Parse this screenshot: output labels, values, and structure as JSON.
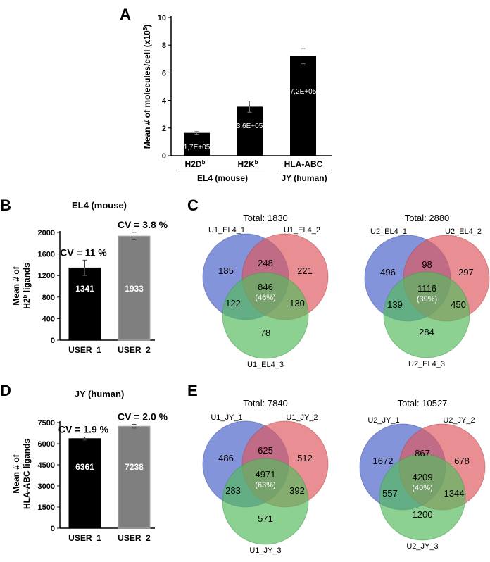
{
  "panels": {
    "A": {
      "letter": "A"
    },
    "B": {
      "letter": "B",
      "title": "EL4 (mouse)"
    },
    "C": {
      "letter": "C"
    },
    "D": {
      "letter": "D",
      "title": "JY (human)"
    },
    "E": {
      "letter": "E"
    }
  },
  "colors": {
    "bar_user1": "#000000",
    "bar_user2": "#7f7f7f",
    "venn_set1": "#4a62c8",
    "venn_set2": "#de5a60",
    "venn_set3": "#55bb5e"
  },
  "chart_data": [
    {
      "id": "A",
      "type": "bar",
      "title": "",
      "ylabel_main": "Mean # of molecules/cell (x10",
      "ylabel_sup": "5",
      "ylabel_end": ")",
      "ylim": [
        0,
        10
      ],
      "yticks": [
        "0",
        "2",
        "4",
        "6",
        "8",
        "10"
      ],
      "categories": [
        {
          "label": "H2D",
          "sup": "b"
        },
        {
          "label": "H2K",
          "sup": "b"
        },
        {
          "label": "HLA-ABC",
          "sup": ""
        }
      ],
      "values": [
        1.65,
        3.55,
        7.2
      ],
      "errors": [
        0.1,
        0.4,
        0.55
      ],
      "data_labels": [
        "1,7E+05",
        "3,6E+05",
        "7,2E+05"
      ],
      "groups": [
        {
          "label": "EL4 (mouse)",
          "categories": [
            0,
            1
          ]
        },
        {
          "label": "JY (human)",
          "categories": [
            2
          ]
        }
      ]
    },
    {
      "id": "B",
      "type": "bar",
      "title": "EL4 (mouse)",
      "ylabel_line1": "Mean # of",
      "ylabel_line2_pre": "H2",
      "ylabel_line2_sup": "b",
      "ylabel_line2_post": " ligands",
      "ylim": [
        0,
        2000
      ],
      "yticks": [
        "0",
        "400",
        "800",
        "1200",
        "1600",
        "2000"
      ],
      "categories": [
        "USER_1",
        "USER_2"
      ],
      "values": [
        1341,
        1933
      ],
      "errors": [
        145,
        70
      ],
      "data_labels": [
        "1341",
        "1933"
      ],
      "annotations": [
        "CV = 11 %",
        "CV = 3.8 %"
      ]
    },
    {
      "id": "D",
      "type": "bar",
      "title": "JY (human)",
      "ylabel_line1": "Mean # of",
      "ylabel_line2": "HLA-ABC ligands",
      "ylim": [
        0,
        7500
      ],
      "yticks": [
        "0",
        "1500",
        "3000",
        "4500",
        "6000",
        "7500"
      ],
      "categories": [
        "USER_1",
        "USER_2"
      ],
      "values": [
        6361,
        7238
      ],
      "errors": [
        110,
        135
      ],
      "data_labels": [
        "6361",
        "7238"
      ],
      "annotations": [
        "CV = 1.9 %",
        "CV = 2.0 %"
      ]
    },
    {
      "id": "C1",
      "type": "venn",
      "title": "Total: 1830",
      "sets": [
        "U1_EL4_1",
        "U1_EL4_2",
        "U1_EL4_3"
      ],
      "regions": {
        "only1": "185",
        "only2": "221",
        "only3": "78",
        "r12": "248",
        "r13": "122",
        "r23": "130",
        "r123": "846"
      },
      "center_pct": "(46%)"
    },
    {
      "id": "C2",
      "type": "venn",
      "title": "Total: 2880",
      "sets": [
        "U2_EL4_1",
        "U2_EL4_2",
        "U2_EL4_3"
      ],
      "regions": {
        "only1": "496",
        "only2": "297",
        "only3": "284",
        "r12": "98",
        "r13": "139",
        "r23": "450",
        "r123": "1116"
      },
      "center_pct": "(39%)"
    },
    {
      "id": "E1",
      "type": "venn",
      "title": "Total: 7840",
      "sets": [
        "U1_JY_1",
        "U1_JY_2",
        "U1_JY_3"
      ],
      "regions": {
        "only1": "486",
        "only2": "512",
        "only3": "571",
        "r12": "625",
        "r13": "283",
        "r23": "392",
        "r123": "4971"
      },
      "center_pct": "(63%)"
    },
    {
      "id": "E2",
      "type": "venn",
      "title": "Total: 10527",
      "sets": [
        "U2_JY_1",
        "U2_JY_2",
        "U2_JY_3"
      ],
      "regions": {
        "only1": "1672",
        "only2": "678",
        "only3": "1200",
        "r12": "867",
        "r13": "557",
        "r23": "1344",
        "r123": "4209"
      },
      "center_pct": "(40%)"
    }
  ]
}
